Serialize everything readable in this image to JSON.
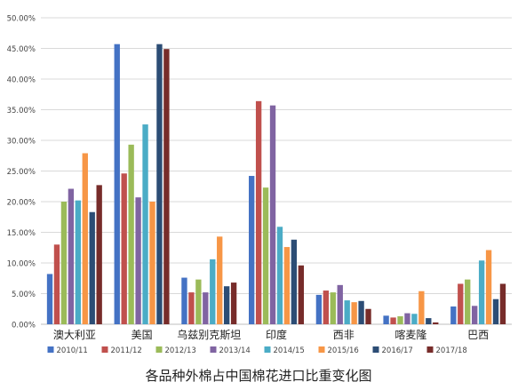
{
  "chart_data": {
    "type": "bar",
    "title": "各品种外棉占中国棉花进口比重变化图",
    "xlabel": "",
    "ylabel": "",
    "ylim": [
      0,
      50
    ],
    "y_ticks": [
      "0.00%",
      "5.00%",
      "10.00%",
      "15.00%",
      "20.00%",
      "25.00%",
      "30.00%",
      "35.00%",
      "40.00%",
      "45.00%",
      "50.00%"
    ],
    "grid": true,
    "legend_position": "bottom",
    "categories": [
      "澳大利亚",
      "美国",
      "乌兹别克斯坦",
      "印度",
      "西非",
      "喀麦隆",
      "巴西"
    ],
    "series": [
      {
        "name": "2010/11",
        "color": "#4472C4",
        "values": [
          8.2,
          45.7,
          7.6,
          24.2,
          4.8,
          1.4,
          2.9
        ]
      },
      {
        "name": "2011/12",
        "color": "#C0504D",
        "values": [
          13.0,
          24.6,
          5.2,
          36.4,
          5.5,
          1.1,
          6.6
        ]
      },
      {
        "name": "2012/13",
        "color": "#9BBB59",
        "values": [
          20.0,
          29.3,
          7.3,
          22.3,
          5.2,
          1.3,
          7.3
        ]
      },
      {
        "name": "2013/14",
        "color": "#8064A2",
        "values": [
          22.1,
          20.7,
          5.2,
          35.7,
          6.4,
          1.8,
          3.0
        ]
      },
      {
        "name": "2014/15",
        "color": "#4BACC6",
        "values": [
          20.2,
          32.6,
          10.6,
          15.9,
          3.9,
          1.7,
          10.4
        ]
      },
      {
        "name": "2015/16",
        "color": "#F79646",
        "values": [
          27.9,
          20.0,
          14.3,
          12.6,
          3.6,
          5.4,
          12.1
        ]
      },
      {
        "name": "2016/17",
        "color": "#2C4D75",
        "values": [
          18.3,
          45.7,
          6.2,
          13.8,
          3.8,
          1.0,
          4.1
        ]
      },
      {
        "name": "2017/18",
        "color": "#772C2A",
        "values": [
          22.7,
          44.9,
          6.8,
          9.6,
          2.5,
          0.3,
          6.6
        ]
      }
    ]
  }
}
